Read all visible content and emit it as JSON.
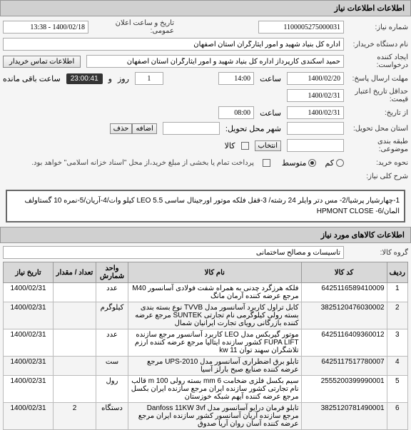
{
  "header": {
    "title": "اطلاعات اطلاعات نیاز"
  },
  "form": {
    "need_no_label": "شماره نیاز:",
    "need_no": "1100005275000031",
    "announce_label": "تاریخ و ساعت اعلان عمومی:",
    "announce_value": "1400/02/18 - 13:38",
    "buyer_org_label": "نام دستگاه خریدار:",
    "buyer_org": "اداره کل بنیاد شهید و امور ایثارگران استان اصفهان",
    "creator_label": "ایجاد کننده درخواست:",
    "creator": "حمید اسکندی کارپرداز اداره کل بنیاد شهید و امور ایثارگران استان اصفهان",
    "contact_btn": "اطلاعات تماس خریدار",
    "deadline_label": "مهلت ارسال پاسخ:",
    "deadline_date": "1400/02/20",
    "hour_label": "ساعت",
    "deadline_hour": "14:00",
    "and_label": "و",
    "day_count": "1",
    "day_label": "روز",
    "remain_time": "23:00:41",
    "remain_label": "ساعت باقی مانده",
    "valid_label": "حداقل تاریخ اعتبار قیمت:",
    "valid_date": "1400/02/31",
    "deliver_label": "از تاریخ:",
    "deliver_date": "1400/02/31",
    "deliver_hour": "08:00",
    "deliver_place_label": "استان محل تحویل:",
    "city_label": "شهر محل تحویل:",
    "add_btn": "اضافه",
    "del_btn": "حذف",
    "type_label": "طبقه بندی موضوعی:",
    "select_btn": "انتخاب",
    "kala_label": "کالا",
    "buy_type_label": "نحوه خرید:",
    "buy_type_low": "کم",
    "buy_type_mid": "متوسط",
    "buy_note": "پرداخت تمام یا بخشی از مبلغ خرید،از محل \"اسناد خزانه اسلامی\" خواهد بود.",
    "desc_label": "شرح کلی نیاز:",
    "desc_text": "1-چهارشیار پرشیا/2- مس دتر وایلر 24 رشته/ 3-قفل فلکه موتور اورجینال ساسی LEO 5.5 کیلو وات/4-آریان/5-نمره 10 گستاولف المان/HPMONT CLOSE -6",
    "items_header": "اطلاعات کالاهای مورد نیاز",
    "group_label": "گروه کالا:",
    "group_value": "تاسیسات و مصالح ساختمانی"
  },
  "table": {
    "cols": {
      "idx": "ردیف",
      "code": "کد کالا",
      "name": "نام کالا",
      "unit": "واحد شمارش",
      "qty": "تعداد / مقدار",
      "date": "تاریخ نیاز"
    },
    "rows": [
      {
        "idx": "1",
        "code": "6425116589410009",
        "name": "فلکه هرزگرد چدنی به همراه شفت فولادی آسانسور M40 مرجع عرضه کننده آرمان مانگ",
        "unit": "عدد",
        "qty": "",
        "date": "1400/02/31"
      },
      {
        "idx": "2",
        "code": "3825120476030002",
        "name": "کابل تراول کاربرد آسانسور مدل TVVB نوع بسته بندی بسته رولی کیلوگرمی نام تجارتی SUNTEK مرجع عرضه کننده بازرگانی رویای تجارت ایرانیان شمال",
        "unit": "کیلوگرم",
        "qty": "",
        "date": "1400/02/31"
      },
      {
        "idx": "3",
        "code": "6425116409360012",
        "name": "موتور گیربکس مدل LEO کاربرد آسانسور مرجع سازنده FUPA LIFT کشور سازنده ایتالیا مرجع عرضه کننده ارزم تلاشگران سهند توان kw 11",
        "unit": "عدد",
        "qty": "",
        "date": "1400/02/31"
      },
      {
        "idx": "4",
        "code": "6425117517780007",
        "name": "تابلو برق اضطراری آسانسور مدل UPS-2010 مرجع عرضه کننده صنایع صبح بارلز آسیا",
        "unit": "ست",
        "qty": "",
        "date": "1400/02/31"
      },
      {
        "idx": "5",
        "code": "2555200399990001",
        "name": "سیم بکسل فلزی ضخامت 6 mm بسته رولی 100 m قالب نام تجارتی کشور سازنده ایران مرجع سازنده ایران بکسل مرجع عرضه کننده آیهم شبکه خوزستان",
        "unit": "رول",
        "qty": "",
        "date": "1400/02/31"
      },
      {
        "idx": "6",
        "code": "3825120781490001",
        "name": "تابلو فرمان درایو آسانسور مدل Danfoss 11KW 3vf مرجع سازنده آریان آسانسور کشور سازنده ایران مرجع عرضه کننده آسان روان آریا صدوق",
        "unit": "دستگاه",
        "qty": "2",
        "date": "1400/02/31"
      }
    ]
  }
}
